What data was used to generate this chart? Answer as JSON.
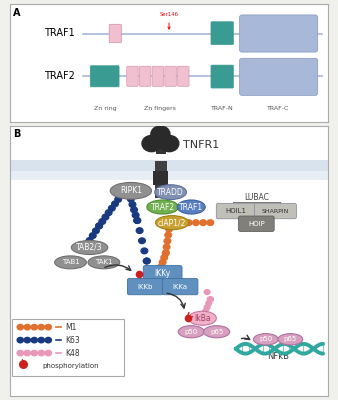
{
  "panel_a_label": "A",
  "panel_b_label": "B",
  "traf1_label": "TRAF1",
  "traf2_label": "TRAF2",
  "domain_labels": [
    "Zn ring",
    "Zn fingers",
    "TRAF-N",
    "TRAF-C"
  ],
  "tnfr1_label": "TNFR1",
  "ser146_label": "Ser146",
  "nfkb_label": "NFkB",
  "bg_color": "#f0f0ec",
  "panel_bg": "#ffffff",
  "border_color": "#aaaaaa",
  "teal_domain": "#3a9b92",
  "light_blue_domain": "#a8b8d8",
  "pink_domain": "#f0c0d0",
  "pink_domain_edge": "#d898b0",
  "backbone_color": "#a8b8d8",
  "orange_chain": "#e07030",
  "dark_blue_chain": "#1a3a80",
  "pink_chain": "#e898b8",
  "red_phospho": "#cc2020",
  "teal_dna": "#30a8a0",
  "receptor_dark": "#303030",
  "membrane1": "#c8d8e8",
  "membrane2": "#d8e4f0",
  "gray_ripk1": "#909090",
  "gray_tradd": "#8090b0",
  "green_traf2": "#70b050",
  "blue_traf1": "#5a7fc0",
  "yellow_ciap": "#c8a030",
  "gray_tab": "#909090",
  "blue_ikk": "#6090c0",
  "gray_lubac_box": "#c0c0b8",
  "dark_gray_hoip": "#808078",
  "pink_ikba": "#f0b0c8",
  "pink_p50p65": "#d8a0c0"
}
